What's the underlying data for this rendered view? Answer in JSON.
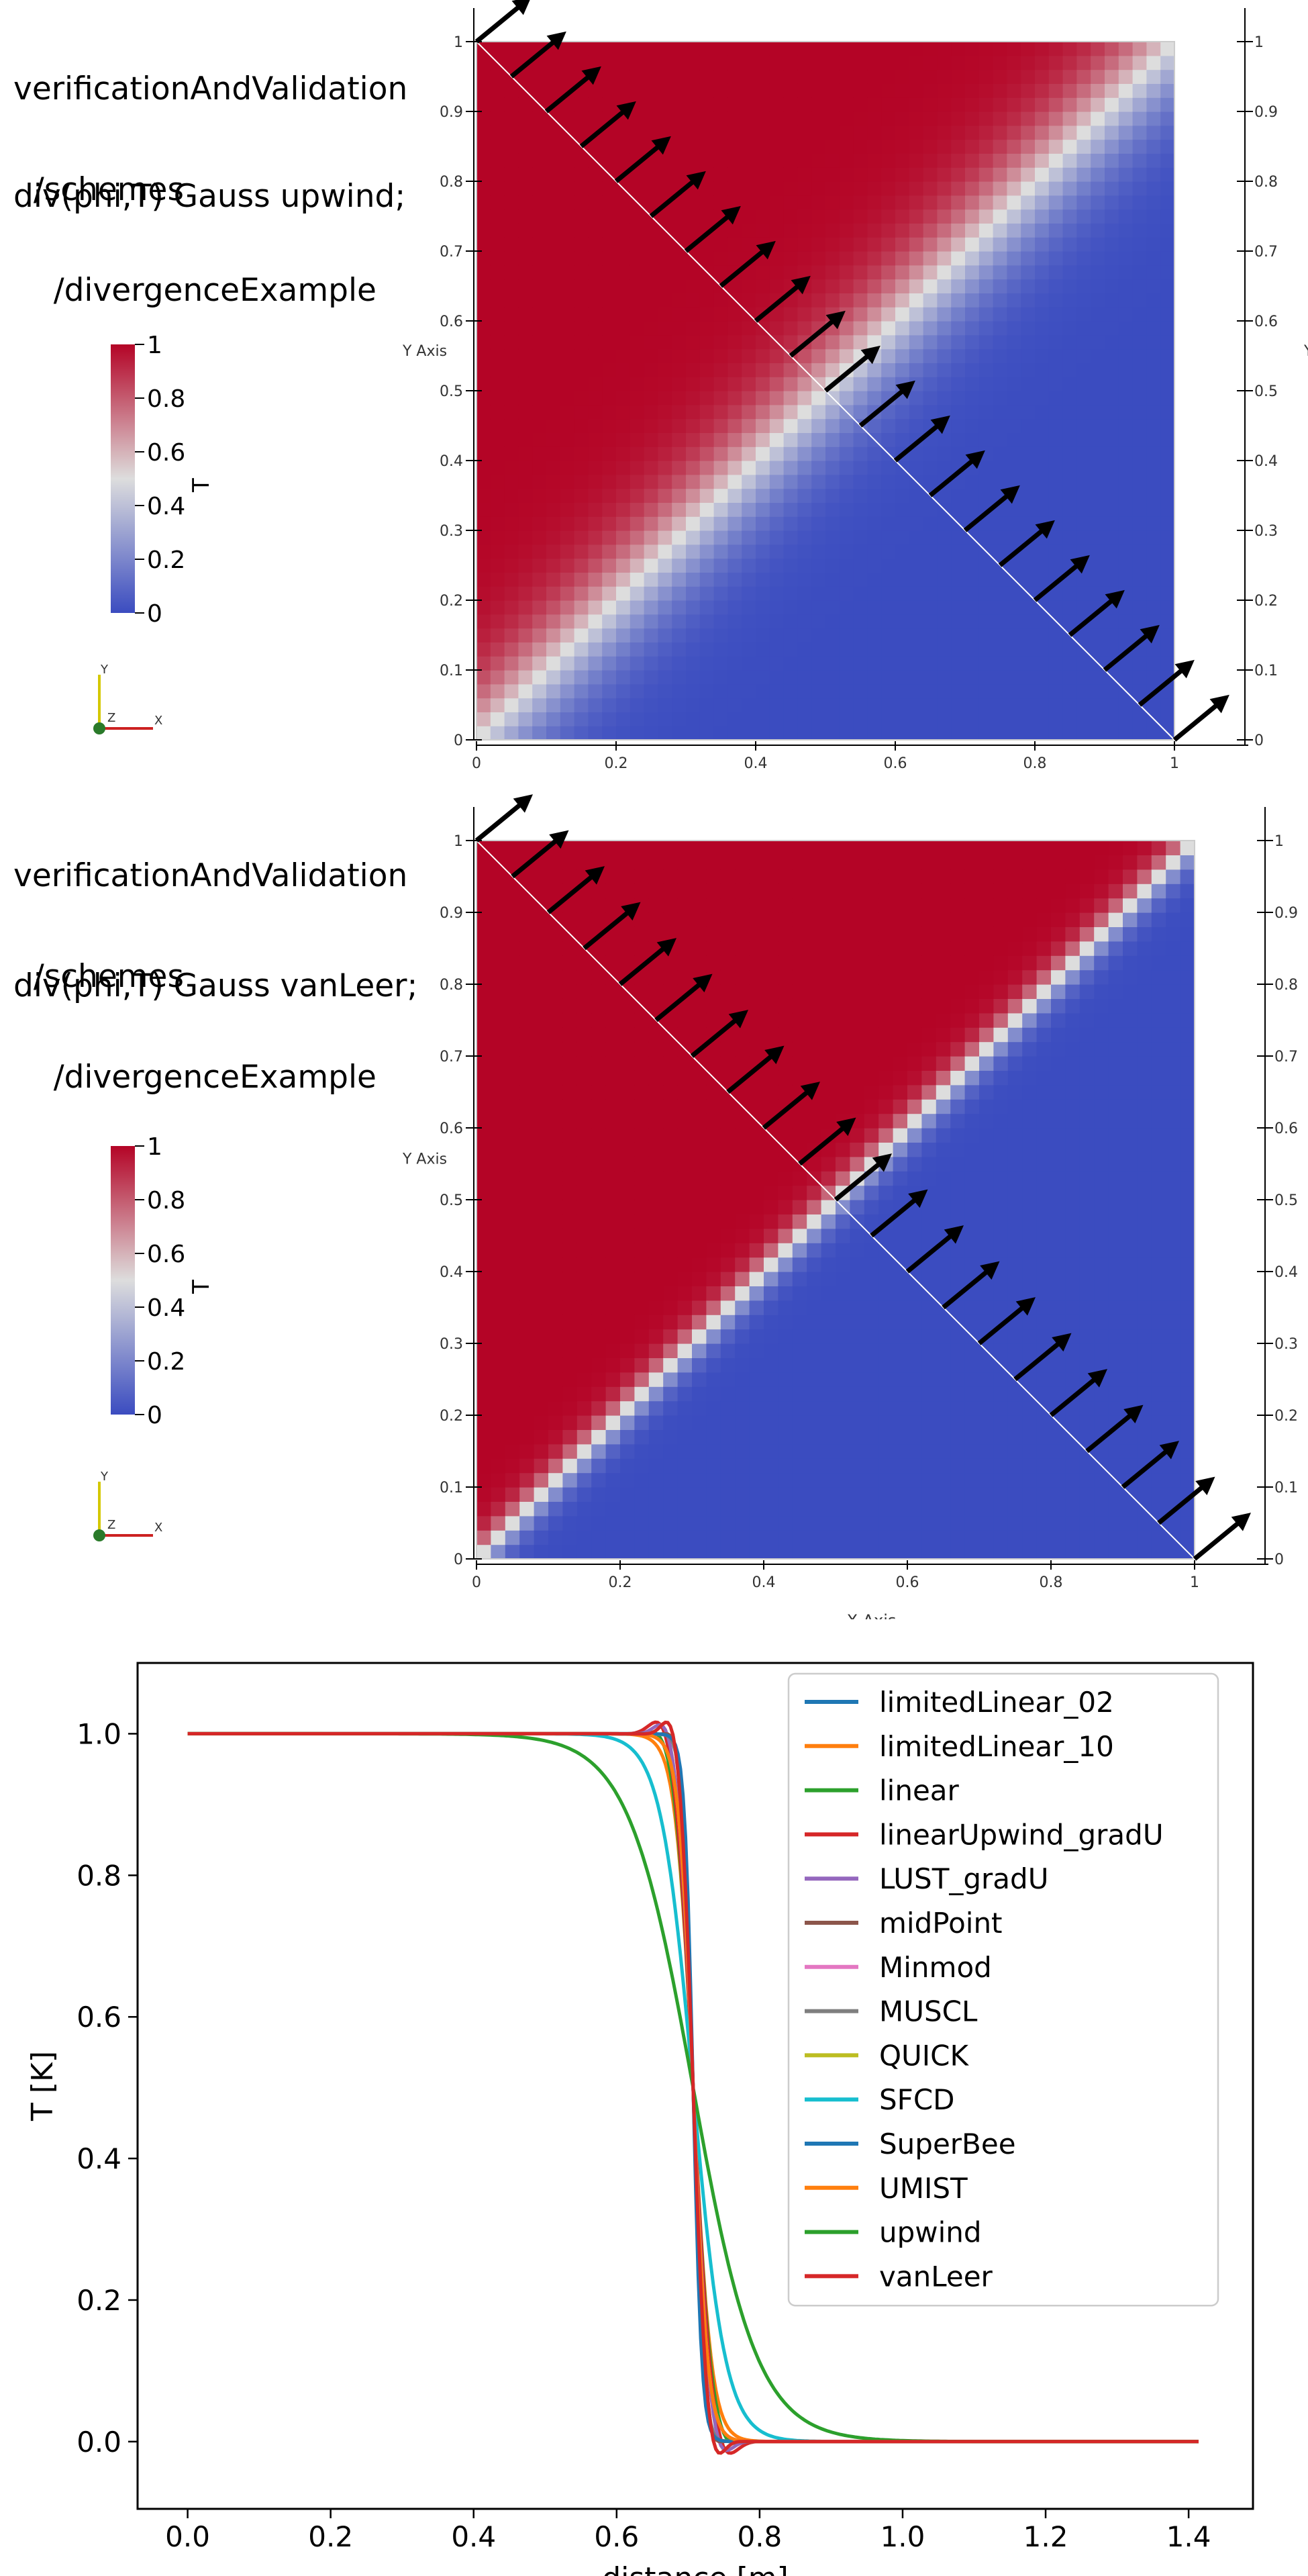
{
  "panels": [
    {
      "path_lines": [
        "verificationAndValidation",
        "  /schemes",
        "    /divergenceExample"
      ],
      "scheme_text": "div(phi,T) Gauss upwind;",
      "colorbar": {
        "title": "T",
        "ticks": [
          "1",
          "0.8",
          "0.6",
          "0.4",
          "0.2",
          "0"
        ]
      },
      "axes_triad": {
        "y": "Y",
        "z": "Z",
        "x": "X"
      },
      "y_axis_title": "Y Axis",
      "x_axis_title": "",
      "x_ticks": [
        "0",
        "0.2",
        "0.4",
        "0.6",
        "0.8",
        "1"
      ],
      "y_ticks": [
        "0",
        "0.1",
        "0.2",
        "0.3",
        "0.4",
        "0.5",
        "0.6",
        "0.7",
        "0.8",
        "0.9",
        "1"
      ],
      "interface_width": 0.16
    },
    {
      "path_lines": [
        "verificationAndValidation",
        "  /schemes",
        "    /divergenceExample"
      ],
      "scheme_text": "div(phi,T) Gauss vanLeer;",
      "colorbar": {
        "title": "T",
        "ticks": [
          "1",
          "0.8",
          "0.6",
          "0.4",
          "0.2",
          "0"
        ]
      },
      "axes_triad": {
        "y": "Y",
        "z": "Z",
        "x": "X"
      },
      "y_axis_title": "Y Axis",
      "x_axis_title": "X Axis",
      "x_ticks": [
        "0",
        "0.2",
        "0.4",
        "0.6",
        "0.8",
        "1"
      ],
      "y_ticks": [
        "0",
        "0.1",
        "0.2",
        "0.3",
        "0.4",
        "0.5",
        "0.6",
        "0.7",
        "0.8",
        "0.9",
        "1"
      ],
      "interface_width": 0.05
    }
  ],
  "colors": {
    "field_high": "#b40426",
    "field_mid": "#dddddd",
    "field_low": "#3b4cc0",
    "arrow": "#000000"
  },
  "chart_data": {
    "type": "line",
    "title": "",
    "xlabel": "distance [m]",
    "ylabel": "T [K]",
    "xlim": [
      -0.07,
      1.49
    ],
    "ylim": [
      -0.095,
      1.1
    ],
    "xticks": [
      0.0,
      0.2,
      0.4,
      0.6,
      0.8,
      1.0,
      1.2,
      1.4
    ],
    "yticks": [
      0.0,
      0.2,
      0.4,
      0.6,
      0.8,
      1.0
    ],
    "grid": false,
    "legend_position": "top-right",
    "x_range": [
      0.0,
      1.414
    ],
    "step_location": 0.707,
    "series": [
      {
        "name": "limitedLinear_02",
        "color": "#1f77b4",
        "width": 0.02,
        "overshoot": 0.0
      },
      {
        "name": "limitedLinear_10",
        "color": "#ff7f0e",
        "width": 0.025,
        "overshoot": 0.0
      },
      {
        "name": "linear",
        "color": "#2ca02c",
        "width": 0.025,
        "overshoot": 0.02
      },
      {
        "name": "linearUpwind_gradU",
        "color": "#d62728",
        "width": 0.025,
        "overshoot": 0.04
      },
      {
        "name": "LUST_gradU",
        "color": "#9467bd",
        "width": 0.022,
        "overshoot": 0.035
      },
      {
        "name": "midPoint",
        "color": "#8c564b",
        "width": 0.015,
        "overshoot": 0.015
      },
      {
        "name": "Minmod",
        "color": "#e377c2",
        "width": 0.02,
        "overshoot": 0.0
      },
      {
        "name": "MUSCL",
        "color": "#7f7f7f",
        "width": 0.015,
        "overshoot": 0.01
      },
      {
        "name": "QUICK",
        "color": "#bcbd22",
        "width": 0.018,
        "overshoot": 0.04
      },
      {
        "name": "SFCD",
        "color": "#17becf",
        "width": 0.045,
        "overshoot": 0.0
      },
      {
        "name": "SuperBee",
        "color": "#1f77b4",
        "width": 0.012,
        "overshoot": 0.0
      },
      {
        "name": "UMIST",
        "color": "#ff7f0e",
        "width": 0.02,
        "overshoot": 0.0
      },
      {
        "name": "upwind",
        "color": "#2ca02c",
        "width": 0.09,
        "overshoot": 0.0
      },
      {
        "name": "vanLeer",
        "color": "#d62728",
        "width": 0.018,
        "overshoot": 0.04
      }
    ]
  }
}
